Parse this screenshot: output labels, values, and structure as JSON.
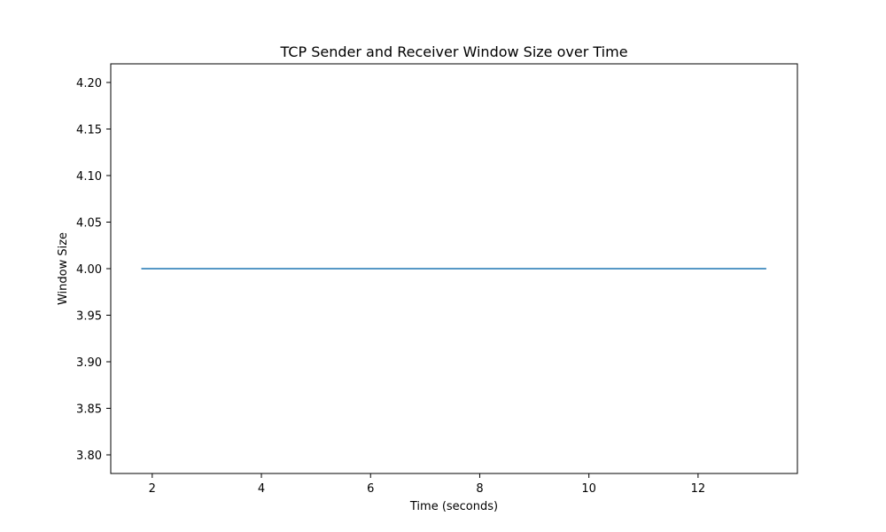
{
  "chart_data": {
    "type": "line",
    "title": "TCP Sender and Receiver Window Size over Time",
    "xlabel": "Time (seconds)",
    "ylabel": "Window Size",
    "xlim": [
      1.24,
      13.82
    ],
    "ylim": [
      3.78,
      4.22
    ],
    "x_ticks": [
      2,
      4,
      6,
      8,
      10,
      12
    ],
    "x_tick_labels": [
      "2",
      "4",
      "6",
      "8",
      "10",
      "12"
    ],
    "y_ticks": [
      3.8,
      3.85,
      3.9,
      3.95,
      4.0,
      4.05,
      4.1,
      4.15,
      4.2
    ],
    "y_tick_labels": [
      "3.80",
      "3.85",
      "3.90",
      "3.95",
      "4.00",
      "4.05",
      "4.10",
      "4.15",
      "4.20"
    ],
    "grid": false,
    "series": [
      {
        "color": "#1f77b4",
        "x": [
          1.8,
          13.25
        ],
        "y": [
          4.0,
          4.0
        ]
      }
    ]
  }
}
